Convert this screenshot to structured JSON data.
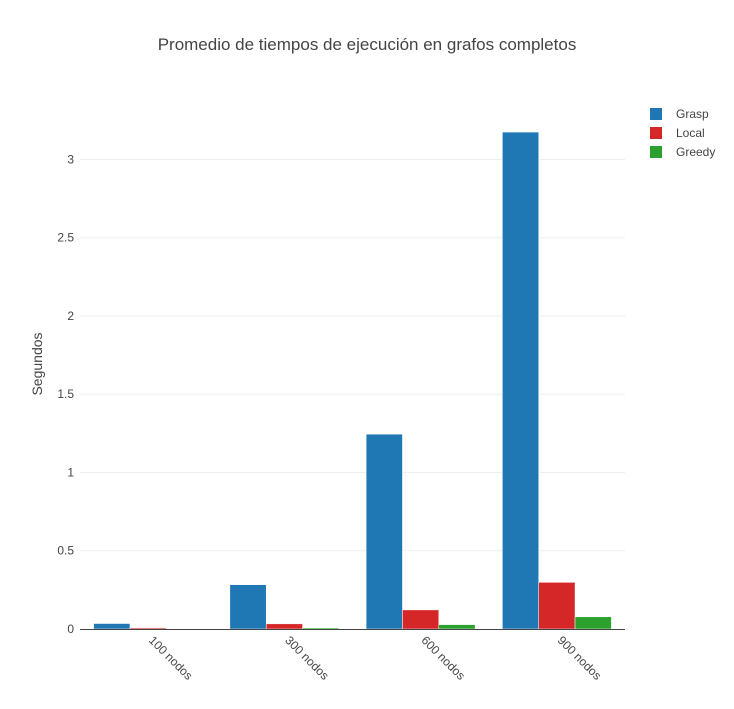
{
  "chart_data": {
    "type": "bar",
    "title": "Promedio de tiempos de ejecución en grafos completos",
    "xlabel": "",
    "ylabel": "Segundos",
    "categories": [
      "100 nodos",
      "300 nodos",
      "600 nodos",
      "900 nodos"
    ],
    "series": [
      {
        "name": "Grasp",
        "color": "#1f77b4",
        "values": [
          0.035,
          0.283,
          1.245,
          3.175
        ]
      },
      {
        "name": "Local",
        "color": "#d62728",
        "values": [
          0.007,
          0.033,
          0.122,
          0.298
        ]
      },
      {
        "name": "Greedy",
        "color": "#2ca02c",
        "values": [
          0.002,
          0.007,
          0.028,
          0.078
        ]
      }
    ],
    "ylim": [
      0,
      3.38
    ],
    "yticks": [
      0,
      0.5,
      1,
      1.5,
      2,
      2.5,
      3
    ],
    "ytick_labels": [
      "0",
      "0.5",
      "1",
      "1.5",
      "2",
      "2.5",
      "3"
    ],
    "grid": true,
    "legend_position": "top-right"
  }
}
